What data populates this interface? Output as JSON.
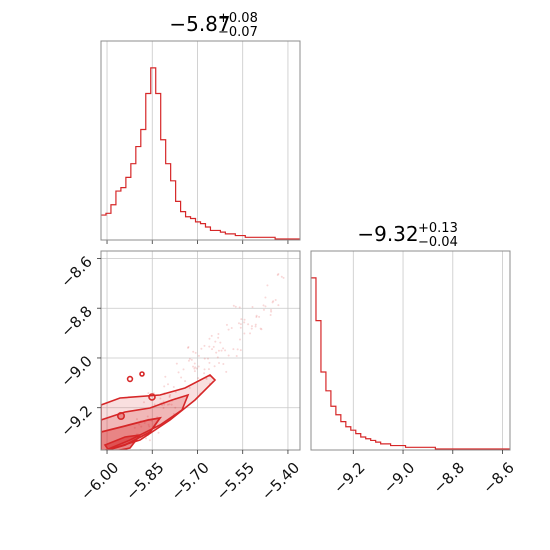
{
  "chart_data": [
    {
      "type": "histogram",
      "panel": "top-left",
      "title": {
        "main": "−5.87",
        "sup": "+0.08",
        "sub": "−0.07"
      },
      "color": "#d62728",
      "xlim": [
        -6.02,
        -5.36
      ],
      "bin_edges_start": -6.02,
      "bin_width": 0.0165,
      "counts": [
        0.14,
        0.15,
        0.2,
        0.28,
        0.3,
        0.36,
        0.44,
        0.54,
        0.64,
        0.85,
        1.0,
        0.85,
        0.58,
        0.44,
        0.34,
        0.22,
        0.16,
        0.13,
        0.12,
        0.1,
        0.09,
        0.07,
        0.05,
        0.05,
        0.04,
        0.03,
        0.03,
        0.02,
        0.02,
        0.01,
        0.01,
        0.01,
        0.01,
        0.01,
        0.01,
        0.0,
        0.0,
        0.0,
        0.0,
        0.0
      ],
      "grid": true
    },
    {
      "type": "scatter-contour",
      "panel": "bottom-left",
      "color": "#d62728",
      "xlim": [
        -6.02,
        -5.36
      ],
      "ylim": [
        -9.37,
        -8.57
      ],
      "xticks": [
        "−6.00",
        "−5.85",
        "−5.70",
        "−5.55",
        "−5.40"
      ],
      "xtick_values": [
        -6.0,
        -5.85,
        -5.7,
        -5.55,
        -5.4
      ],
      "yticks": [
        "−8.6",
        "−8.8",
        "−9.0",
        "−9.2"
      ],
      "ytick_values": [
        -8.6,
        -8.8,
        -9.0,
        -9.2
      ],
      "grid": true
    },
    {
      "type": "histogram",
      "panel": "bottom-right",
      "title": {
        "main": "−9.32",
        "sup": "+0.13",
        "sub": "−0.04"
      },
      "color": "#d62728",
      "xlim": [
        -9.37,
        -8.57
      ],
      "bin_edges_start": -9.37,
      "bin_width": 0.02,
      "counts": [
        1.0,
        0.75,
        0.45,
        0.34,
        0.25,
        0.2,
        0.16,
        0.13,
        0.11,
        0.09,
        0.07,
        0.06,
        0.05,
        0.04,
        0.03,
        0.03,
        0.02,
        0.02,
        0.02,
        0.01,
        0.01,
        0.01,
        0.01,
        0.01,
        0.01,
        0.0,
        0.0,
        0.0,
        0.0,
        0.0,
        0.0,
        0.0,
        0.0,
        0.0,
        0.0,
        0.0,
        0.0,
        0.0,
        0.0,
        0.0
      ],
      "xticks": [
        "−9.2",
        "−9.0",
        "−8.8",
        "−8.6"
      ],
      "xtick_values": [
        -9.2,
        -9.0,
        -8.8,
        -8.6
      ],
      "grid": true
    }
  ]
}
